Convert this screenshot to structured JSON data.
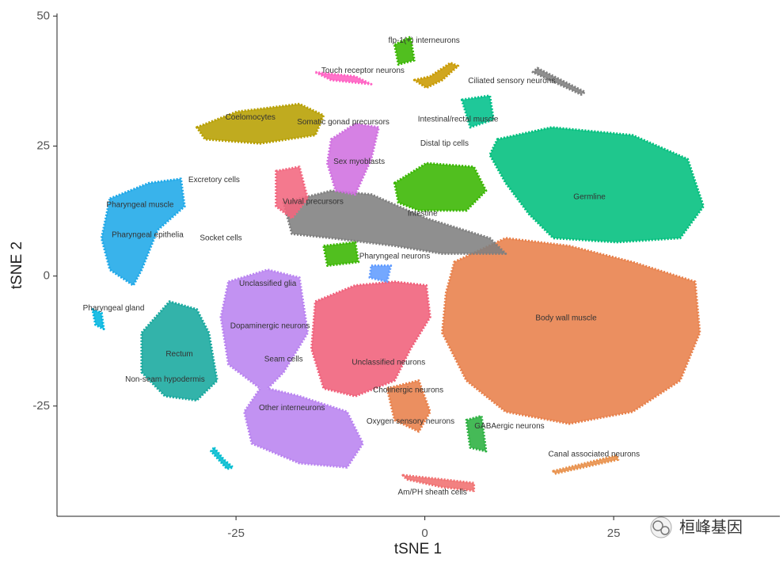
{
  "chart_data": {
    "type": "scatter",
    "x_label": "tSNE 1",
    "y_label": "tSNE 2",
    "xlim": [
      -48.7,
      47
    ],
    "ylim": [
      -46.2,
      50.5
    ],
    "xticks": [
      -25,
      0,
      25
    ],
    "yticks": [
      -25,
      0,
      25,
      50
    ],
    "series": [
      {
        "color": "#e8804a",
        "x": [
          3.9,
          10.7,
          19.1,
          27.5,
          35.8,
          36.4,
          33.8,
          27.5,
          19.1,
          10.7,
          5.5,
          2.3,
          2.8
        ],
        "y": [
          2.7,
          7.3,
          5.8,
          2.7,
          -1.1,
          -10.9,
          -20.1,
          -26.1,
          -28.4,
          -26.1,
          -20.1,
          -10.9,
          -3.3
        ]
      },
      {
        "color": "#00bf7d",
        "x": [
          9.6,
          16.8,
          27.5,
          34.8,
          36.9,
          33.8,
          25.4,
          17.0,
          13.8,
          10.7,
          8.6
        ],
        "y": [
          26.3,
          28.6,
          27.1,
          22.5,
          13.4,
          7.3,
          6.5,
          7.3,
          11.9,
          17.9,
          23.3
        ]
      },
      {
        "color": "#b79f00",
        "x": [
          -30.2,
          -24.9,
          -16.6,
          -13.4,
          -14.5,
          -21.8,
          -29.1
        ],
        "y": [
          28.6,
          31.6,
          33.1,
          30.9,
          27.1,
          25.5,
          26.3
        ]
      },
      {
        "color": "#39b600",
        "x": [
          -4.0,
          0.2,
          6.5,
          8.1,
          5.5,
          -0.8,
          -3.5
        ],
        "y": [
          17.9,
          21.7,
          21.0,
          16.4,
          12.6,
          12.6,
          14.1
        ]
      },
      {
        "color": "#b983f0",
        "x": [
          -26.0,
          -20.8,
          -16.6,
          -15.5,
          -18.7,
          -20.8,
          -16.6,
          -10.3,
          -8.2,
          -10.3,
          -16.6,
          -22.9,
          -23.9,
          -21.8,
          -26.0,
          -27.0
        ],
        "y": [
          -1.1,
          1.2,
          -0.3,
          -10.9,
          -18.5,
          -21.6,
          -23.1,
          -26.1,
          -32.2,
          -36.8,
          -36.0,
          -32.2,
          -26.1,
          -21.6,
          -17.0,
          -7.9
        ]
      },
      {
        "color": "#f0607a",
        "x": [
          -14.5,
          -9.2,
          -4.0,
          0.2,
          0.7,
          -1.9,
          -4.0,
          -9.2,
          -13.4,
          -15.0
        ],
        "y": [
          -4.9,
          -1.8,
          -1.1,
          -1.8,
          -7.9,
          -14.0,
          -20.1,
          -23.1,
          -21.6,
          -14.0
        ]
      },
      {
        "color": "#1ea8e8",
        "x": [
          -41.7,
          -36.5,
          -32.3,
          -31.8,
          -35.4,
          -37.5,
          -38.6,
          -41.7,
          -42.8
        ],
        "y": [
          14.9,
          17.9,
          18.7,
          13.4,
          8.8,
          1.2,
          -1.8,
          1.2,
          7.3
        ]
      },
      {
        "color": "#17a89e",
        "x": [
          -37.5,
          -33.8,
          -30.2,
          -28.6,
          -27.5,
          -30.2,
          -34.4,
          -37.5
        ],
        "y": [
          -10.9,
          -4.9,
          -6.4,
          -10.9,
          -20.1,
          -23.9,
          -23.1,
          -18.5
        ]
      },
      {
        "color": "#7f7f7f",
        "x": [
          -18.7,
          -12.4,
          -7.1,
          0.2,
          8.6,
          10.7,
          2.3,
          -4.0,
          -12.4,
          -17.6
        ],
        "y": [
          14.1,
          16.4,
          15.7,
          11.1,
          7.3,
          4.3,
          4.3,
          5.8,
          7.3,
          8.1
        ]
      },
      {
        "color": "#d070e0",
        "x": [
          -12.4,
          -9.2,
          -6.1,
          -7.1,
          -9.2,
          -11.8,
          -12.9
        ],
        "y": [
          26.3,
          29.3,
          28.6,
          22.5,
          15.7,
          16.4,
          21.7
        ]
      },
      {
        "color": "#f2667e",
        "x": [
          -19.7,
          -16.6,
          -15.5,
          -17.6,
          -19.7
        ],
        "y": [
          20.2,
          21.0,
          14.9,
          11.1,
          13.4
        ]
      },
      {
        "color": "#39b600",
        "x": [
          -13.4,
          -9.2,
          -8.8,
          -12.9
        ],
        "y": [
          5.8,
          6.5,
          2.7,
          2.0
        ]
      },
      {
        "color": "#00c08b",
        "x": [
          4.9,
          8.6,
          9.1,
          6.0
        ],
        "y": [
          33.9,
          34.7,
          30.1,
          28.6
        ]
      },
      {
        "color": "#39b600",
        "x": [
          -4.0,
          -1.9,
          -1.4,
          -3.5
        ],
        "y": [
          44.5,
          46.0,
          41.5,
          40.7
        ]
      },
      {
        "color": "#ff61c3",
        "x": [
          -14.5,
          -9.2,
          -7.1,
          -12.4
        ],
        "y": [
          39.2,
          38.4,
          36.9,
          37.7
        ]
      },
      {
        "color": "#c99a00",
        "x": [
          -1.4,
          0.7,
          3.4,
          4.4,
          2.3,
          0.2
        ],
        "y": [
          37.7,
          38.4,
          41.0,
          40.4,
          37.7,
          36.2
        ]
      },
      {
        "color": "#7f7f7f",
        "x": [
          14.9,
          21.2,
          20.7,
          14.3
        ],
        "y": [
          40.0,
          35.4,
          34.9,
          39.2
        ]
      },
      {
        "color": "#e8904a",
        "x": [
          17.0,
          25.4,
          25.6,
          17.2
        ],
        "y": [
          -37.5,
          -34.5,
          -35.3,
          -38.0
        ]
      },
      {
        "color": "#f07070",
        "x": [
          -2.9,
          2.3,
          6.5,
          6.5,
          2.3,
          -2.4
        ],
        "y": [
          -38.3,
          -39.1,
          -39.8,
          -41.3,
          -40.6,
          -39.1
        ]
      },
      {
        "color": "#2bb040",
        "x": [
          5.5,
          7.5,
          8.1,
          6.0
        ],
        "y": [
          -27.7,
          -26.9,
          -33.7,
          -33.0
        ]
      },
      {
        "color": "#e8804a",
        "x": [
          -5.0,
          -0.8,
          0.7,
          -0.8,
          -4.0
        ],
        "y": [
          -21.6,
          -20.1,
          -26.1,
          -29.9,
          -27.7
        ]
      },
      {
        "color": "#00b5e0",
        "x": [
          -44.0,
          -42.8,
          -42.5,
          -43.6
        ],
        "y": [
          -6.4,
          -7.1,
          -10.2,
          -9.4
        ]
      },
      {
        "color": "#619cff",
        "x": [
          -7.1,
          -4.5,
          -5.0,
          -7.3
        ],
        "y": [
          2.0,
          2.0,
          -1.1,
          -0.3
        ]
      },
      {
        "color": "#00bcd0",
        "x": [
          -27.9,
          -26.6,
          -25.4,
          -26.2,
          -28.3
        ],
        "y": [
          -33.0,
          -35.3,
          -36.8,
          -37.1,
          -33.7
        ]
      }
    ],
    "annotations": [
      {
        "text": "flp-1(+) interneurons",
        "x": -0.1,
        "y": 45.3
      },
      {
        "text": "Touch receptor neurons",
        "x": -8.2,
        "y": 39.5
      },
      {
        "text": "Ciliated sensory neurons",
        "x": 11.5,
        "y": 37.5
      },
      {
        "text": "Intestinal/rectal muscle",
        "x": 4.4,
        "y": 30.1
      },
      {
        "text": "Coelomocytes",
        "x": -23.1,
        "y": 30.5
      },
      {
        "text": "Somatic gonad precursors",
        "x": -10.8,
        "y": 29.6
      },
      {
        "text": "Distal tip cells",
        "x": 2.6,
        "y": 25.5
      },
      {
        "text": "Sex myoblasts",
        "x": -8.7,
        "y": 22.0
      },
      {
        "text": "Germline",
        "x": 21.8,
        "y": 15.2
      },
      {
        "text": "Excretory cells",
        "x": -27.9,
        "y": 18.5
      },
      {
        "text": "Pharyngeal muscle",
        "x": -37.7,
        "y": 13.7
      },
      {
        "text": "Vulval precursors",
        "x": -14.8,
        "y": 14.3
      },
      {
        "text": "Intestine",
        "x": -0.3,
        "y": 12.0
      },
      {
        "text": "Pharyngeal epithelia",
        "x": -36.7,
        "y": 7.9
      },
      {
        "text": "Socket cells",
        "x": -27.0,
        "y": 7.3
      },
      {
        "text": "Pharyngeal neurons",
        "x": -4.0,
        "y": 3.8
      },
      {
        "text": "Unclassified glia",
        "x": -20.8,
        "y": -1.5
      },
      {
        "text": "Pharyngeal gland",
        "x": -41.2,
        "y": -6.2
      },
      {
        "text": "Body wall muscle",
        "x": 18.7,
        "y": -8.1
      },
      {
        "text": "Dopaminergic neurons",
        "x": -20.5,
        "y": -9.6
      },
      {
        "text": "Rectum",
        "x": -32.5,
        "y": -15.0
      },
      {
        "text": "Seam cells",
        "x": -18.7,
        "y": -16.0
      },
      {
        "text": "Unclassified neurons",
        "x": -4.8,
        "y": -16.6
      },
      {
        "text": "Non-seam hypodermis",
        "x": -34.4,
        "y": -19.9
      },
      {
        "text": "Cholinergic neurons",
        "x": -2.2,
        "y": -22.0
      },
      {
        "text": "Other interneurons",
        "x": -17.6,
        "y": -25.4
      },
      {
        "text": "Oxygen sensory neurons",
        "x": -1.9,
        "y": -28.0
      },
      {
        "text": "GABAergic neurons",
        "x": 11.2,
        "y": -28.9
      },
      {
        "text": "Canal associated neurons",
        "x": 22.4,
        "y": -34.3
      },
      {
        "text": "Am/PH sheath cells",
        "x": 1.0,
        "y": -41.6
      }
    ]
  },
  "watermark": "桓峰基因"
}
